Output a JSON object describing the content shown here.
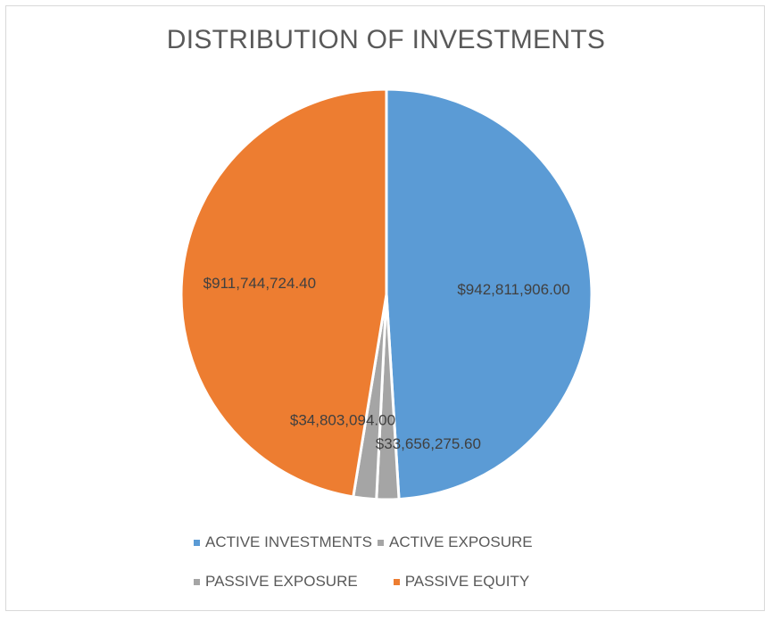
{
  "chart_data": {
    "type": "pie",
    "title": "DISTRIBUTION OF INVESTMENTS",
    "categories": [
      "ACTIVE INVESTMENTS",
      "ACTIVE EXPOSURE",
      "PASSIVE EXPOSURE",
      "PASSIVE EQUITY"
    ],
    "values": [
      942811906.0,
      33656275.6,
      34803094.0,
      911744724.4
    ],
    "labels": [
      "$942,811,906.00",
      "$33,656,275.60",
      "$34,803,094.00",
      "$911,744,724.40"
    ],
    "colors": [
      "#5b9bd5",
      "#a5a5a5",
      "#a5a5a5",
      "#ed7d31"
    ],
    "start_angle": "12 o'clock",
    "direction": "clockwise",
    "legend_position": "bottom"
  }
}
